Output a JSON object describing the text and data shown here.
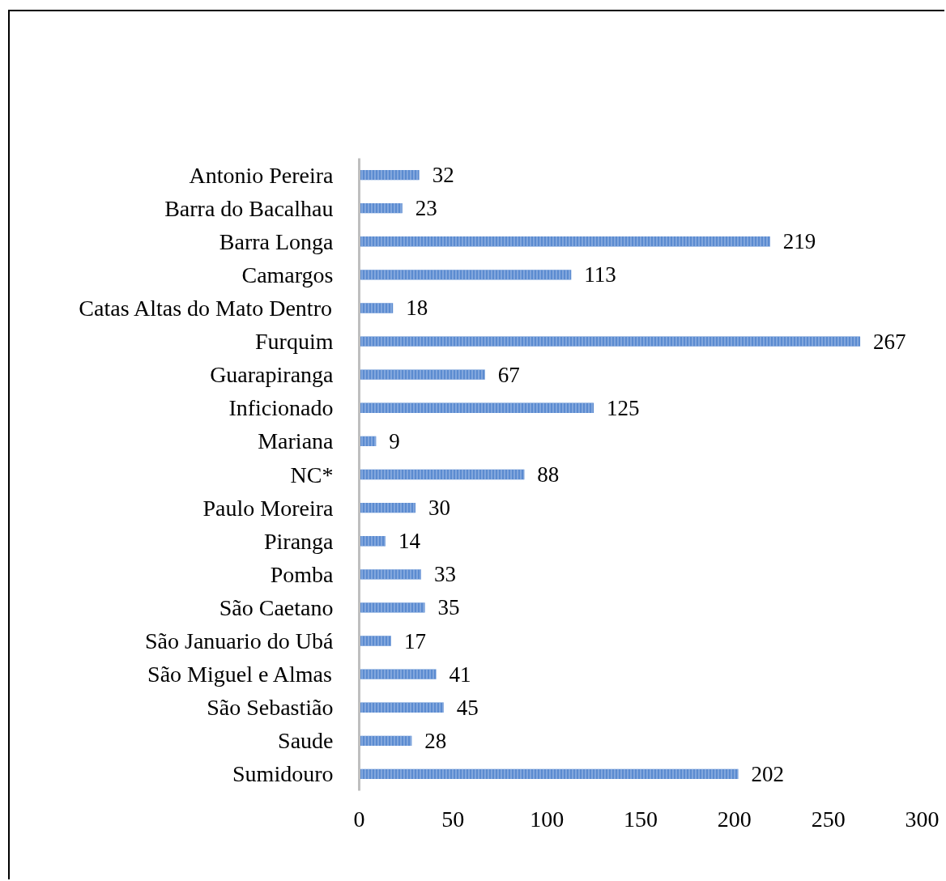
{
  "chart_data": {
    "type": "bar",
    "orientation": "horizontal",
    "categories": [
      "Antonio Pereira",
      "Barra do Bacalhau",
      "Barra Longa",
      "Camargos",
      "Catas Altas do Mato Dentro",
      "Furquim",
      "Guarapiranga",
      "Inficionado",
      "Mariana",
      "NC*",
      "Paulo Moreira",
      "Piranga",
      "Pomba",
      "São Caetano",
      "São Januario do Ubá",
      "São Miguel e Almas",
      "São Sebastião",
      "Saude",
      "Sumidouro"
    ],
    "values": [
      32,
      23,
      219,
      113,
      18,
      267,
      67,
      125,
      9,
      88,
      30,
      14,
      33,
      35,
      17,
      41,
      45,
      28,
      202
    ],
    "color": "#5b8bd0",
    "xlim": [
      0,
      300
    ],
    "xticks": [
      0,
      50,
      100,
      150,
      200,
      250,
      300
    ],
    "data_labels": true
  }
}
